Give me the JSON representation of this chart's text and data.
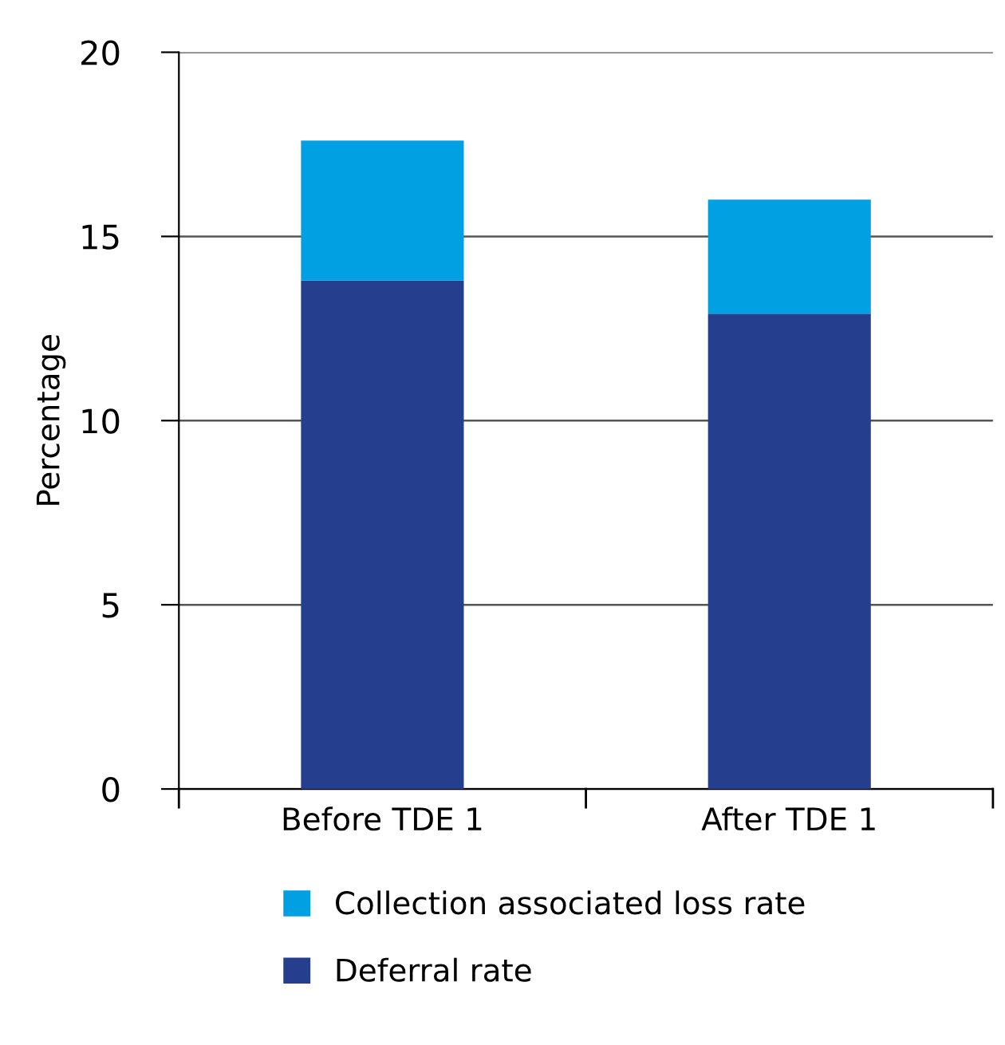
{
  "chart_data": {
    "type": "bar",
    "stacked": true,
    "ylabel": "Percentage",
    "categories": [
      "Before TDE 1",
      "After TDE 1"
    ],
    "series": [
      {
        "name": "Deferral rate",
        "color": "#253f8e",
        "values": [
          13.8,
          12.9
        ]
      },
      {
        "name": "Collection associated loss rate",
        "color": "#00a0e2",
        "values": [
          3.8,
          3.1
        ]
      }
    ],
    "ylim": [
      0,
      20
    ],
    "yticks": [
      0,
      5,
      10,
      15,
      20
    ],
    "grid": "y",
    "legend": "bottom"
  }
}
